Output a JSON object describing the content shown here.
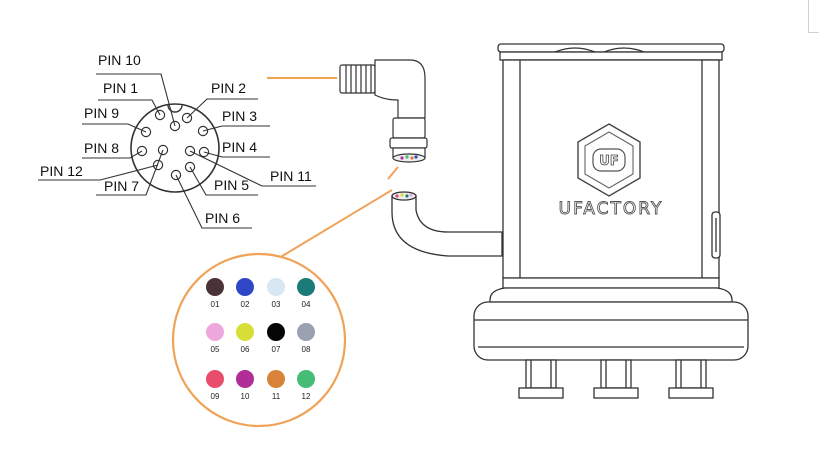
{
  "pin_labels": {
    "pin10": "PIN 10",
    "pin1": "PIN 1",
    "pin9": "PIN 9",
    "pin8": "PIN 8",
    "pin12": "PIN 12",
    "pin7": "PIN 7",
    "pin6": "PIN 6",
    "pin2": "PIN 2",
    "pin3": "PIN 3",
    "pin4": "PIN 4",
    "pin11": "PIN 11",
    "pin5": "PIN 5"
  },
  "wire_colors": [
    {
      "num": "01",
      "color": "#4a3338"
    },
    {
      "num": "02",
      "color": "#2f47c6"
    },
    {
      "num": "03",
      "color": "#d8e7f1"
    },
    {
      "num": "04",
      "color": "#1c7a78"
    },
    {
      "num": "05",
      "color": "#eea7dc"
    },
    {
      "num": "06",
      "color": "#d7df37"
    },
    {
      "num": "07",
      "color": "#050505"
    },
    {
      "num": "08",
      "color": "#9aa1b1"
    },
    {
      "num": "09",
      "color": "#ea4d6c"
    },
    {
      "num": "10",
      "color": "#b12d98"
    },
    {
      "num": "11",
      "color": "#d8823a"
    },
    {
      "num": "12",
      "color": "#45bd74"
    }
  ],
  "device": {
    "brand": "UFACTORY",
    "badge": "UF"
  },
  "accent_color": "#f0a257"
}
